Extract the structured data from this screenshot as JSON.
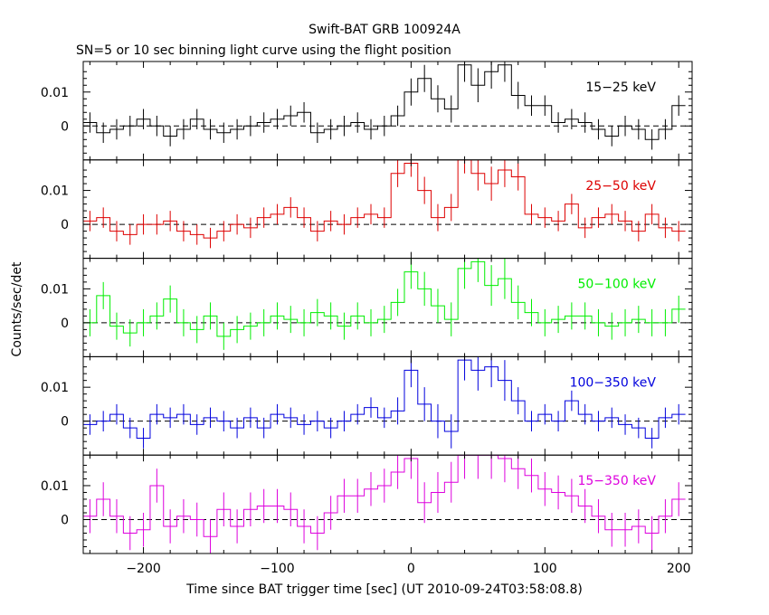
{
  "chart_data": {
    "type": "line",
    "title": "Swift-BAT GRB 100924A",
    "subtitle": "SN=5 or 10 sec binning light curve using the flight position",
    "xlabel": "Time since BAT trigger time [sec] (UT 2010-09-24T03:58:08.8)",
    "ylabel": "Counts/sec/det",
    "xlim": [
      -245,
      210
    ],
    "ylim": [
      -0.01,
      0.019
    ],
    "x_ticks": [
      -200,
      -100,
      0,
      100,
      200
    ],
    "x_tick_labels": [
      "−200",
      "−100",
      "0",
      "100",
      "200"
    ],
    "y_ticks": [
      0,
      0.01
    ],
    "y_tick_labels": [
      "0",
      "0.01"
    ],
    "x": [
      -240,
      -230,
      -220,
      -210,
      -200,
      -190,
      -180,
      -170,
      -160,
      -150,
      -140,
      -130,
      -120,
      -110,
      -100,
      -90,
      -80,
      -70,
      -60,
      -50,
      -40,
      -30,
      -20,
      -10,
      0,
      10,
      20,
      30,
      40,
      50,
      60,
      70,
      80,
      90,
      100,
      110,
      120,
      130,
      140,
      150,
      160,
      170,
      180,
      190,
      200
    ],
    "series": [
      {
        "name": "15−25 keV",
        "color": "#000000",
        "values": [
          0.001,
          -0.002,
          -0.001,
          0,
          0.002,
          0,
          -0.003,
          -0.001,
          0.002,
          -0.001,
          -0.002,
          -0.001,
          0,
          0.001,
          0.002,
          0.003,
          0.004,
          -0.002,
          -0.001,
          0,
          0.001,
          -0.001,
          0,
          0.003,
          0.01,
          0.014,
          0.008,
          0.005,
          0.018,
          0.012,
          0.016,
          0.018,
          0.009,
          0.006,
          0.006,
          0.001,
          0.002,
          0.001,
          -0.001,
          -0.003,
          0,
          -0.001,
          -0.004,
          -0.001,
          0.006
        ],
        "errors": [
          0.003,
          0.003,
          0.003,
          0.003,
          0.003,
          0.003,
          0.003,
          0.003,
          0.003,
          0.003,
          0.003,
          0.003,
          0.003,
          0.003,
          0.003,
          0.003,
          0.003,
          0.003,
          0.003,
          0.003,
          0.003,
          0.003,
          0.003,
          0.003,
          0.004,
          0.004,
          0.004,
          0.004,
          0.005,
          0.005,
          0.005,
          0.005,
          0.004,
          0.003,
          0.003,
          0.003,
          0.003,
          0.003,
          0.003,
          0.003,
          0.003,
          0.003,
          0.003,
          0.003,
          0.003
        ]
      },
      {
        "name": "25−50 keV",
        "color": "#dd0000",
        "values": [
          0.001,
          0.002,
          -0.002,
          -0.003,
          0,
          0,
          0.001,
          -0.002,
          -0.003,
          -0.004,
          -0.002,
          0,
          -0.001,
          0.002,
          0.003,
          0.005,
          0.002,
          -0.002,
          0.001,
          0,
          0.002,
          0.003,
          0.002,
          0.015,
          0.018,
          0.01,
          0.002,
          0.005,
          0.02,
          0.015,
          0.012,
          0.016,
          0.014,
          0.003,
          0.002,
          0.001,
          0.006,
          -0.001,
          0.002,
          0.003,
          0.001,
          -0.002,
          0.003,
          -0.001,
          -0.002
        ],
        "errors": [
          0.003,
          0.003,
          0.003,
          0.003,
          0.003,
          0.003,
          0.003,
          0.003,
          0.003,
          0.003,
          0.003,
          0.003,
          0.003,
          0.003,
          0.003,
          0.003,
          0.003,
          0.003,
          0.003,
          0.003,
          0.003,
          0.003,
          0.003,
          0.004,
          0.004,
          0.004,
          0.004,
          0.004,
          0.005,
          0.005,
          0.005,
          0.005,
          0.004,
          0.003,
          0.003,
          0.003,
          0.003,
          0.003,
          0.003,
          0.003,
          0.003,
          0.003,
          0.003,
          0.003,
          0.003
        ]
      },
      {
        "name": "50−100 keV",
        "color": "#00ee00",
        "values": [
          0,
          0.008,
          -0.001,
          -0.003,
          0,
          0.002,
          0.007,
          0,
          -0.002,
          0.002,
          -0.004,
          -0.002,
          -0.001,
          0,
          0.002,
          0.001,
          0,
          0.003,
          0.002,
          -0.001,
          0.002,
          0,
          0.001,
          0.006,
          0.015,
          0.01,
          0.005,
          0.001,
          0.016,
          0.018,
          0.011,
          0.013,
          0.006,
          0.003,
          0,
          0.001,
          0.002,
          0.002,
          0,
          -0.001,
          0,
          0.001,
          0,
          0,
          0.004
        ],
        "errors": [
          0.004,
          0.004,
          0.004,
          0.004,
          0.004,
          0.004,
          0.004,
          0.004,
          0.004,
          0.004,
          0.004,
          0.004,
          0.004,
          0.004,
          0.004,
          0.004,
          0.004,
          0.004,
          0.004,
          0.004,
          0.004,
          0.004,
          0.004,
          0.004,
          0.005,
          0.005,
          0.005,
          0.005,
          0.006,
          0.006,
          0.006,
          0.006,
          0.005,
          0.004,
          0.004,
          0.004,
          0.004,
          0.004,
          0.004,
          0.004,
          0.004,
          0.004,
          0.004,
          0.004,
          0.004
        ]
      },
      {
        "name": "100−350 keV",
        "color": "#0000dd",
        "values": [
          -0.001,
          0,
          0.002,
          -0.002,
          -0.005,
          0.002,
          0.001,
          0.002,
          -0.001,
          0.001,
          0,
          -0.002,
          0.001,
          -0.002,
          0.002,
          0.001,
          -0.001,
          0,
          -0.002,
          0,
          0.002,
          0.004,
          0.001,
          0.003,
          0.015,
          0.005,
          0,
          -0.003,
          0.018,
          0.015,
          0.016,
          0.012,
          0.006,
          0,
          0.002,
          0,
          0.006,
          0.002,
          0,
          0.001,
          -0.001,
          -0.002,
          -0.005,
          0.001,
          0.002
        ],
        "errors": [
          0.003,
          0.003,
          0.003,
          0.003,
          0.003,
          0.003,
          0.003,
          0.003,
          0.003,
          0.003,
          0.003,
          0.003,
          0.003,
          0.003,
          0.003,
          0.003,
          0.003,
          0.003,
          0.003,
          0.003,
          0.003,
          0.003,
          0.003,
          0.004,
          0.005,
          0.005,
          0.005,
          0.005,
          0.006,
          0.006,
          0.006,
          0.006,
          0.004,
          0.003,
          0.003,
          0.003,
          0.003,
          0.003,
          0.003,
          0.003,
          0.003,
          0.003,
          0.003,
          0.003,
          0.003
        ]
      },
      {
        "name": "15−350 keV",
        "color": "#dd00dd",
        "values": [
          0.001,
          0.006,
          0.001,
          -0.004,
          -0.003,
          0.01,
          -0.002,
          0.001,
          0,
          -0.005,
          0.003,
          -0.002,
          0.003,
          0.004,
          0.004,
          0.003,
          -0.002,
          -0.004,
          0.002,
          0.007,
          0.007,
          0.009,
          0.01,
          0.014,
          0.018,
          0.005,
          0.008,
          0.011,
          0.019,
          0.019,
          0.019,
          0.018,
          0.015,
          0.013,
          0.009,
          0.008,
          0.007,
          0.004,
          0.001,
          -0.003,
          -0.003,
          -0.002,
          -0.004,
          0.001,
          0.006
        ],
        "errors": [
          0.005,
          0.005,
          0.005,
          0.005,
          0.005,
          0.005,
          0.005,
          0.005,
          0.005,
          0.005,
          0.005,
          0.005,
          0.005,
          0.005,
          0.005,
          0.005,
          0.005,
          0.005,
          0.005,
          0.005,
          0.005,
          0.005,
          0.005,
          0.005,
          0.006,
          0.006,
          0.006,
          0.006,
          0.007,
          0.007,
          0.007,
          0.007,
          0.006,
          0.005,
          0.005,
          0.005,
          0.005,
          0.005,
          0.005,
          0.005,
          0.005,
          0.005,
          0.005,
          0.005,
          0.005
        ]
      }
    ]
  }
}
